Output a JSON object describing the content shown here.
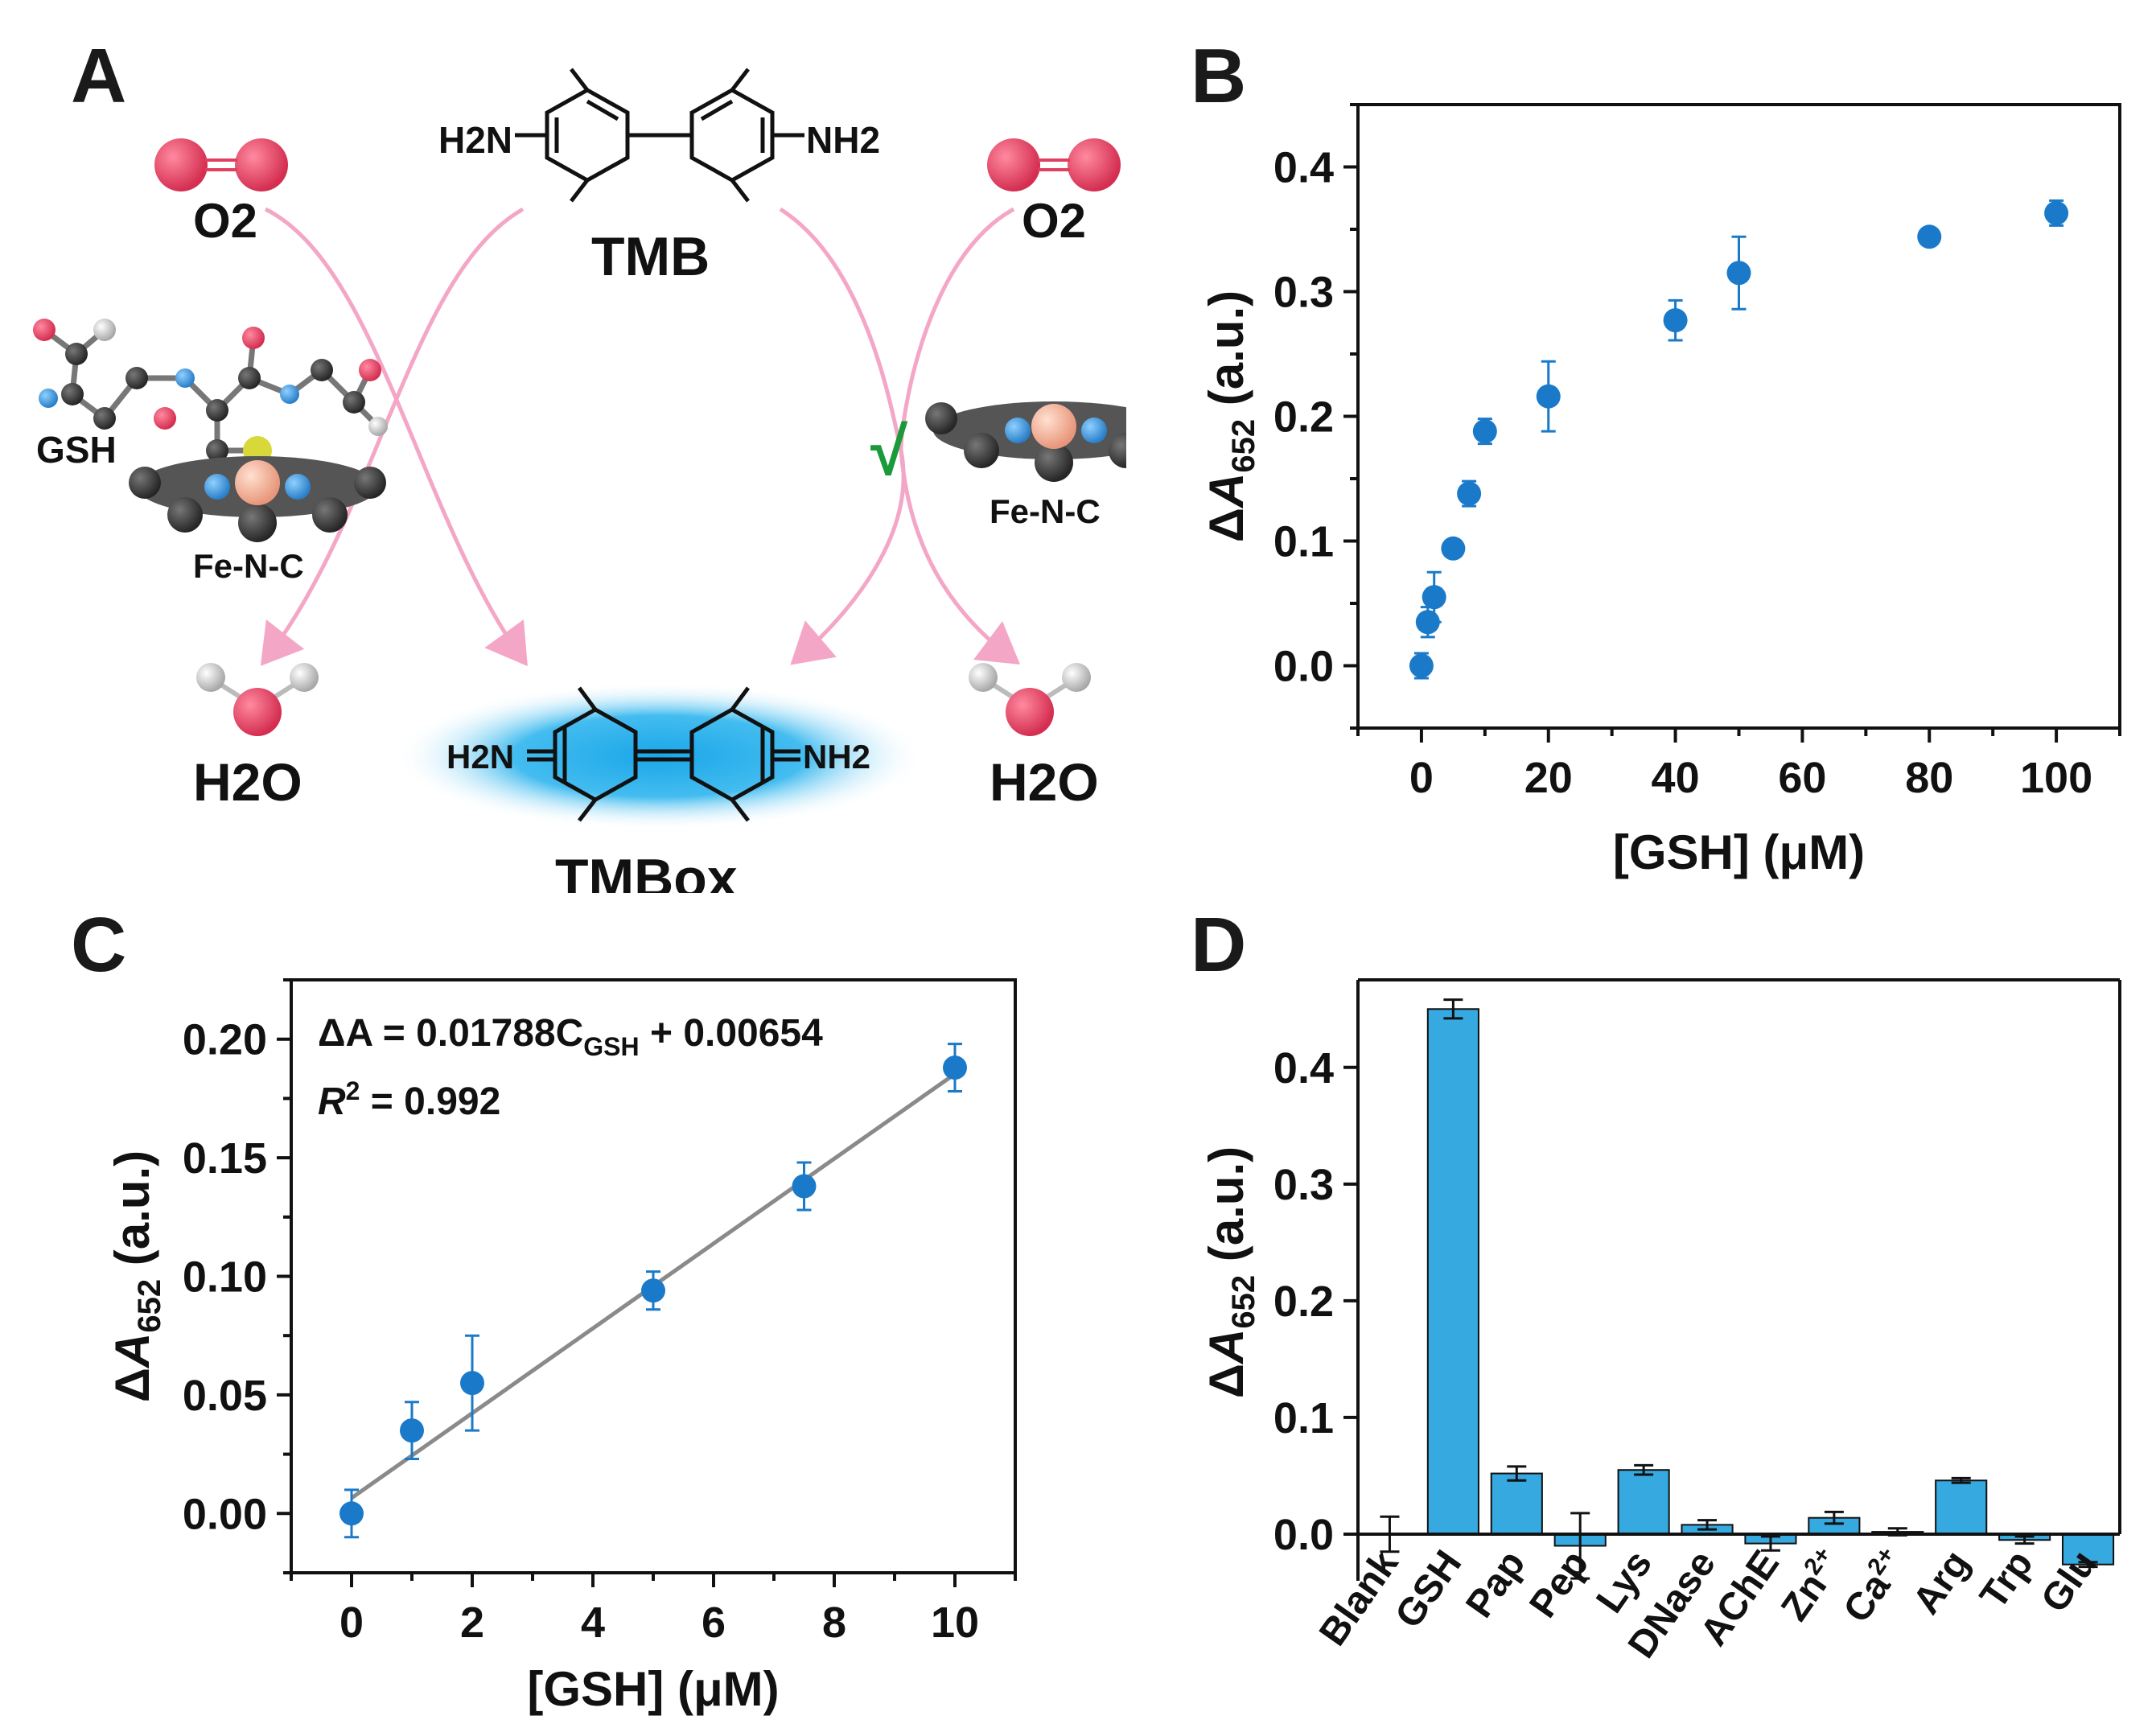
{
  "panels": {
    "a": "A",
    "b": "B",
    "c": "C",
    "d": "D"
  },
  "scheme": {
    "o2_left": "O2",
    "o2_right": "O2",
    "tmb": "TMB",
    "tmb_left_group": "H2N",
    "tmb_right_group": "NH2",
    "gsh": "GSH",
    "fe_n_c_left": "Fe-N-C",
    "fe_n_c_right": "Fe-N-C",
    "h2o_left": "H2O",
    "h2o_right": "H2O",
    "tmbox": "TMBox",
    "tmbox_left_group": "H2N",
    "tmbox_right_group": "NH2",
    "check": "√",
    "colors": {
      "arrow": "#f4a6c6",
      "oxygen": "#e0405f",
      "iron": "#f2b49a",
      "nitrogen": "#3a8fd6",
      "carbon": "#3a3a3a",
      "check": "#1a9a3a",
      "glow": "#26b7ef"
    }
  },
  "chart_data": [
    {
      "type": "scatter",
      "panel": "B",
      "title": "",
      "xlabel": "[GSH] (μM)",
      "ylabel": "ΔA652 (a.u.)",
      "xlim": [
        -10,
        110
      ],
      "ylim": [
        -0.05,
        0.45
      ],
      "xticks": [
        0,
        20,
        40,
        60,
        80,
        100
      ],
      "yticks": [
        0.0,
        0.1,
        0.2,
        0.3,
        0.4
      ],
      "xtick_labels": [
        "0",
        "20",
        "40",
        "60",
        "80",
        "100"
      ],
      "ytick_labels": [
        "0.0",
        "0.1",
        "0.2",
        "0.3",
        "0.4"
      ],
      "color": "#1a7ac9",
      "x": [
        0,
        1,
        2,
        5,
        7.5,
        10,
        20,
        40,
        50,
        80,
        100
      ],
      "y": [
        0.0,
        0.035,
        0.055,
        0.094,
        0.138,
        0.188,
        0.216,
        0.277,
        0.315,
        0.344,
        0.363
      ],
      "err": [
        0.01,
        0.012,
        0.02,
        0.005,
        0.01,
        0.01,
        0.028,
        0.016,
        0.029,
        0.004,
        0.01
      ]
    },
    {
      "type": "scatter",
      "panel": "C",
      "title": "",
      "xlabel": "[GSH] (μM)",
      "ylabel": "ΔA652 (a.u.)",
      "xlim": [
        -1,
        11
      ],
      "ylim": [
        -0.025,
        0.225
      ],
      "xticks": [
        0,
        2,
        4,
        6,
        8,
        10
      ],
      "yticks": [
        0.0,
        0.05,
        0.1,
        0.15,
        0.2
      ],
      "xtick_labels": [
        "0",
        "2",
        "4",
        "6",
        "8",
        "10"
      ],
      "ytick_labels": [
        "0.00",
        "0.05",
        "0.10",
        "0.15",
        "0.20"
      ],
      "color": "#1a7ac9",
      "fit_color": "#8a8a8a",
      "x": [
        0,
        1,
        2,
        5,
        7.5,
        10
      ],
      "y": [
        0.0,
        0.035,
        0.055,
        0.094,
        0.138,
        0.188
      ],
      "err": [
        0.01,
        0.012,
        0.02,
        0.008,
        0.01,
        0.01
      ],
      "fit": {
        "slope": 0.01788,
        "intercept": 0.00654,
        "x_range": [
          0,
          10
        ]
      },
      "annotation_equation": {
        "prefix": "ΔA = 0.01788C",
        "sub": "GSH",
        "suffix": " + 0.00654"
      },
      "annotation_r2": {
        "prefix": "R",
        "sup": "2",
        "suffix": " = 0.992"
      }
    },
    {
      "type": "bar",
      "panel": "D",
      "title": "",
      "xlabel": "",
      "ylabel": "ΔA652 (a.u.)",
      "ylim": [
        -0.04,
        0.475
      ],
      "yticks": [
        0.0,
        0.1,
        0.2,
        0.3,
        0.4
      ],
      "ytick_labels": [
        "0.0",
        "0.1",
        "0.2",
        "0.3",
        "0.4"
      ],
      "color": "#36a9e1",
      "categories": [
        "Blank",
        "GSH",
        "Pap",
        "Pep",
        "Lys",
        "DNase",
        "AChE",
        "Zn2+",
        "Ca2+",
        "Arg",
        "Trp",
        "Glu"
      ],
      "values": [
        0.0,
        0.45,
        0.052,
        -0.01,
        0.055,
        0.008,
        -0.008,
        0.014,
        0.002,
        0.046,
        -0.005,
        -0.026
      ],
      "err": [
        0.015,
        0.008,
        0.006,
        0.028,
        0.004,
        0.004,
        0.006,
        0.005,
        0.003,
        0.002,
        0.003,
        0.002
      ]
    }
  ]
}
